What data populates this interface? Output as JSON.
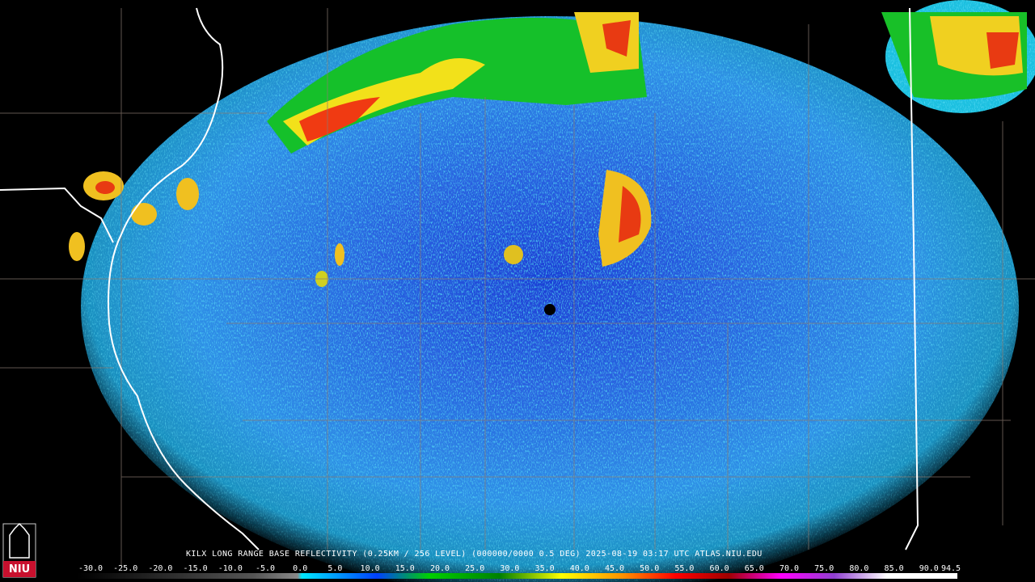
{
  "caption": "KILX LONG RANGE BASE REFLECTIVITY (0.25KM / 256 LEVEL) (000000/0000 0.5 DEG) 2025-08-19 03:17 UTC  ATLAS.NIU.EDU",
  "logo": "NIU",
  "scale": {
    "labels": [
      "-30.0",
      "-25.0",
      "-20.0",
      "-15.0",
      "-10.0",
      "-5.0",
      "0.0",
      "5.0",
      "10.0",
      "15.0",
      "20.0",
      "25.0",
      "30.0",
      "35.0",
      "40.0",
      "45.0",
      "50.0",
      "55.0",
      "60.0",
      "65.0",
      "70.0",
      "75.0",
      "80.0",
      "85.0",
      "90.0",
      "94.5"
    ]
  }
}
